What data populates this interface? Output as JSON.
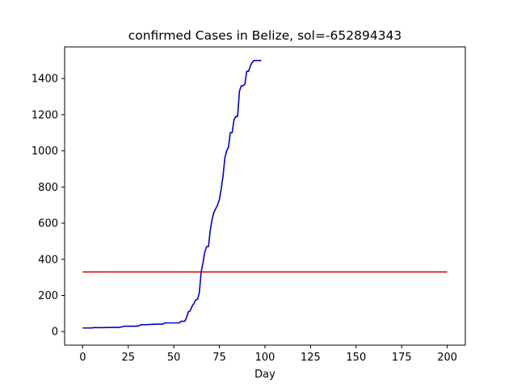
{
  "chart_data": {
    "type": "line",
    "title": "confirmed Cases in Belize, sol=-652894343",
    "xlabel": "Day",
    "ylabel": "",
    "xlim": [
      -9.9,
      209.9
    ],
    "ylim": [
      -75,
      1575
    ],
    "xticks": [
      0,
      25,
      50,
      75,
      100,
      125,
      150,
      175,
      200
    ],
    "yticks": [
      0,
      200,
      400,
      600,
      800,
      1000,
      1200,
      1400
    ],
    "grid": false,
    "series": [
      {
        "color": "#0000cc",
        "x": [
          0,
          5,
          6,
          10,
          15,
          20,
          21,
          22,
          23,
          30,
          31,
          32,
          35,
          40,
          44,
          45,
          50,
          53,
          54,
          56,
          57,
          58,
          59,
          60,
          61,
          62,
          63,
          64,
          65,
          66,
          67,
          68,
          69,
          70,
          71,
          72,
          73,
          74,
          75,
          76,
          77,
          78,
          79,
          80,
          81,
          82,
          83,
          84,
          85,
          86,
          87,
          88,
          89,
          90,
          91,
          92,
          93,
          94,
          95,
          96,
          97,
          98
        ],
        "y": [
          20,
          20,
          22,
          22,
          23,
          23,
          25,
          28,
          30,
          30,
          33,
          38,
          38,
          41,
          41,
          48,
          48,
          48,
          57,
          57,
          78,
          110,
          115,
          140,
          155,
          175,
          178,
          215,
          330,
          380,
          440,
          470,
          470,
          560,
          620,
          660,
          680,
          700,
          730,
          790,
          860,
          960,
          1000,
          1020,
          1100,
          1100,
          1170,
          1190,
          1190,
          1330,
          1360,
          1360,
          1370,
          1440,
          1440,
          1470,
          1490,
          1500,
          1500,
          1500,
          1500,
          1500
        ]
      },
      {
        "color": "#dd0000",
        "x": [
          0,
          200
        ],
        "y": [
          330,
          330
        ]
      }
    ]
  }
}
